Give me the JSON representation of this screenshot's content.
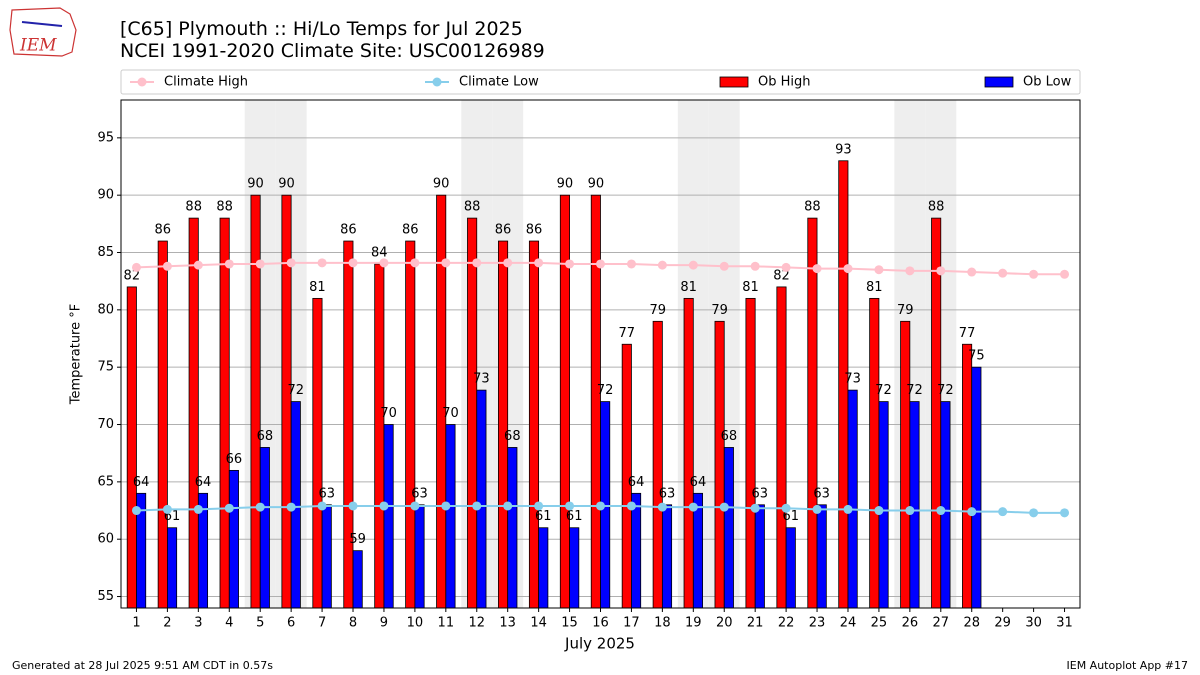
{
  "header": {
    "logo_text": "IEM"
  },
  "chart_data": {
    "type": "bar",
    "title": "[C65] Plymouth :: Hi/Lo Temps for Jul 2025",
    "subtitle": "NCEI 1991-2020 Climate Site: USC00126989",
    "x_label": "July 2025",
    "y_label": "Temperature °F",
    "x": [
      1,
      2,
      3,
      4,
      5,
      6,
      7,
      8,
      9,
      10,
      11,
      12,
      13,
      14,
      15,
      16,
      17,
      18,
      19,
      20,
      21,
      22,
      23,
      24,
      25,
      26,
      27,
      28,
      29,
      30,
      31
    ],
    "xlim": [
      0.5,
      31.5
    ],
    "ylim": [
      54,
      98.3
    ],
    "yticks": [
      55,
      60,
      65,
      70,
      75,
      80,
      85,
      90,
      95
    ],
    "grid": true,
    "shaded_days": [
      5,
      6,
      12,
      13,
      19,
      20,
      26,
      27
    ],
    "series": [
      {
        "name": "Climate High",
        "type": "line",
        "color": "#ffc0cb",
        "values": [
          83.7,
          83.8,
          83.9,
          84.0,
          84.0,
          84.1,
          84.1,
          84.1,
          84.1,
          84.1,
          84.1,
          84.1,
          84.1,
          84.1,
          84.0,
          84.0,
          84.0,
          83.9,
          83.9,
          83.8,
          83.8,
          83.7,
          83.6,
          83.6,
          83.5,
          83.4,
          83.4,
          83.3,
          83.2,
          83.1,
          83.1
        ]
      },
      {
        "name": "Climate Low",
        "type": "line",
        "color": "#87ceeb",
        "values": [
          62.5,
          62.6,
          62.6,
          62.7,
          62.8,
          62.8,
          62.9,
          62.9,
          62.9,
          62.9,
          62.9,
          62.9,
          62.9,
          62.9,
          62.9,
          62.9,
          62.9,
          62.8,
          62.8,
          62.8,
          62.7,
          62.7,
          62.6,
          62.6,
          62.5,
          62.5,
          62.5,
          62.4,
          62.4,
          62.3,
          62.3
        ]
      },
      {
        "name": "Ob High",
        "type": "bar",
        "color": "#ff0000",
        "values": [
          82,
          86,
          88,
          88,
          90,
          90,
          81,
          86,
          84,
          86,
          90,
          88,
          86,
          86,
          90,
          90,
          77,
          79,
          81,
          79,
          81,
          82,
          88,
          93,
          81,
          79,
          88,
          77,
          null,
          null,
          null
        ]
      },
      {
        "name": "Ob Low",
        "type": "bar",
        "color": "#0000ff",
        "values": [
          64,
          61,
          64,
          66,
          68,
          72,
          63,
          59,
          70,
          63,
          70,
          73,
          68,
          61,
          61,
          72,
          64,
          63,
          64,
          68,
          63,
          61,
          63,
          73,
          72,
          72,
          72,
          75,
          null,
          null,
          null
        ]
      }
    ]
  },
  "footer": {
    "left": "Generated at 28 Jul 2025 9:51 AM CDT in 0.57s",
    "right": "IEM Autoplot App #17"
  }
}
